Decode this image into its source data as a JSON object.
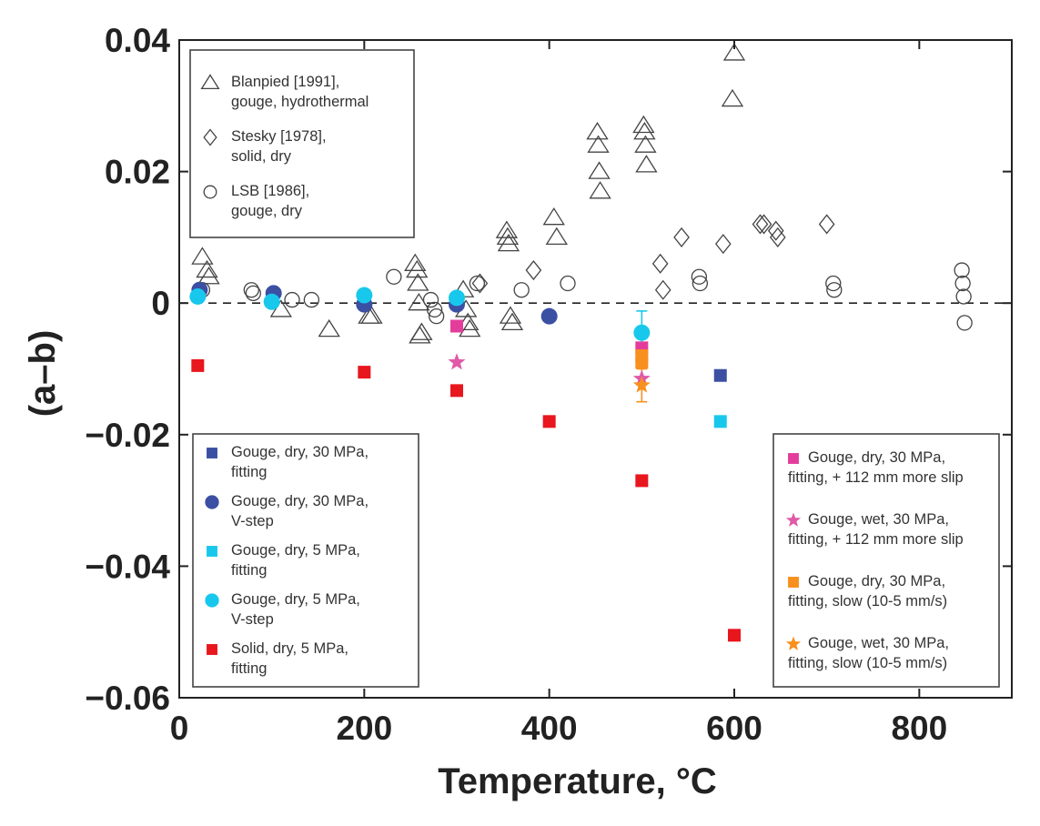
{
  "chart_data": {
    "type": "scatter",
    "title": "",
    "xlabel": "Temperature, °C",
    "ylabel": "(a–b)",
    "xlim": [
      0,
      900
    ],
    "ylim": [
      -0.06,
      0.04
    ],
    "xticks": [
      0,
      200,
      400,
      600,
      800
    ],
    "xtick_labels": [
      "0",
      "200",
      "400",
      "600",
      "800"
    ],
    "yticks": [
      -0.06,
      -0.04,
      -0.02,
      0,
      0.02,
      0.04
    ],
    "ytick_labels": [
      "−0.06",
      "−0.04",
      "−0.02",
      "0",
      "0.02",
      "0.04"
    ],
    "grid": false,
    "reference_line": {
      "y": 0,
      "style": "dashed"
    },
    "legends": [
      {
        "placement": "top-left",
        "entries": [
          {
            "series": 0,
            "lines": [
              "Blanpied [1991],",
              "gouge, hydrothermal"
            ]
          },
          {
            "series": 1,
            "lines": [
              "Stesky [1978],",
              "solid, dry"
            ]
          },
          {
            "series": 2,
            "lines": [
              "LSB [1986],",
              "gouge, dry"
            ]
          }
        ]
      },
      {
        "placement": "bottom-left",
        "entries": [
          {
            "series": 3,
            "lines": [
              "Gouge, dry, 30 MPa,",
              "fitting"
            ]
          },
          {
            "series": 4,
            "lines": [
              "Gouge, dry, 30 MPa,",
              "V-step"
            ]
          },
          {
            "series": 5,
            "lines": [
              "Gouge, dry, 5 MPa,",
              "fitting"
            ]
          },
          {
            "series": 6,
            "lines": [
              "Gouge, dry, 5 MPa,",
              "V-step"
            ]
          },
          {
            "series": 7,
            "lines": [
              "Solid, dry, 5 MPa,",
              "fitting"
            ]
          }
        ]
      },
      {
        "placement": "bottom-right",
        "entries": [
          {
            "series": 8,
            "lines": [
              "Gouge, dry, 30 MPa,",
              "fitting, + 112 mm more slip"
            ]
          },
          {
            "series": 9,
            "lines": [
              "Gouge, wet, 30 MPa,",
              "fitting, + 112 mm more slip"
            ]
          },
          {
            "series": 10,
            "lines": [
              "Gouge, dry, 30 MPa,",
              "fitting, slow (10-5 mm/s)"
            ]
          },
          {
            "series": 11,
            "lines": [
              "Gouge, wet, 30 MPa,",
              "fitting, slow (10-5 mm/s)"
            ]
          }
        ]
      }
    ],
    "series": [
      {
        "marker": "triangle",
        "color": "#444444",
        "fill": "none",
        "points": [
          [
            25,
            0.007
          ],
          [
            30,
            0.005
          ],
          [
            32,
            0.004
          ],
          [
            110,
            -0.001
          ],
          [
            162,
            -0.004
          ],
          [
            205,
            -0.002
          ],
          [
            208,
            -0.002
          ],
          [
            255,
            0.006
          ],
          [
            257,
            0.005
          ],
          [
            258,
            0.003
          ],
          [
            259,
            0.0
          ],
          [
            260,
            -0.005
          ],
          [
            262,
            -0.0045
          ],
          [
            307,
            0.002
          ],
          [
            310,
            -0.001
          ],
          [
            312,
            -0.003
          ],
          [
            314,
            -0.004
          ],
          [
            354,
            0.011
          ],
          [
            355,
            0.01
          ],
          [
            356,
            0.009
          ],
          [
            358,
            -0.002
          ],
          [
            360,
            -0.003
          ],
          [
            405,
            0.013
          ],
          [
            408,
            0.01
          ],
          [
            452,
            0.026
          ],
          [
            453,
            0.024
          ],
          [
            454,
            0.02
          ],
          [
            455,
            0.017
          ],
          [
            502,
            0.027
          ],
          [
            503,
            0.026
          ],
          [
            504,
            0.024
          ],
          [
            505,
            0.021
          ],
          [
            600,
            0.038
          ],
          [
            598,
            0.031
          ]
        ]
      },
      {
        "marker": "diamond",
        "color": "#444444",
        "fill": "none",
        "points": [
          [
            325,
            0.003
          ],
          [
            383,
            0.005
          ],
          [
            520,
            0.006
          ],
          [
            523,
            0.002
          ],
          [
            543,
            0.01
          ],
          [
            588,
            0.009
          ],
          [
            628,
            0.012
          ],
          [
            632,
            0.012
          ],
          [
            645,
            0.011
          ],
          [
            647,
            0.01
          ],
          [
            700,
            0.012
          ]
        ]
      },
      {
        "marker": "circle",
        "color": "#444444",
        "fill": "none",
        "points": [
          [
            25,
            0.002
          ],
          [
            78,
            0.002
          ],
          [
            80,
            0.0015
          ],
          [
            122,
            0.0005
          ],
          [
            143,
            0.0005
          ],
          [
            232,
            0.004
          ],
          [
            272,
            0.0005
          ],
          [
            276,
            -0.001
          ],
          [
            278,
            -0.002
          ],
          [
            322,
            0.003
          ],
          [
            370,
            0.002
          ],
          [
            420,
            0.003
          ],
          [
            562,
            0.004
          ],
          [
            563,
            0.003
          ],
          [
            707,
            0.003
          ],
          [
            708,
            0.002
          ],
          [
            846,
            0.005
          ],
          [
            847,
            0.003
          ],
          [
            848,
            0.001
          ],
          [
            849,
            -0.003
          ]
        ]
      },
      {
        "marker": "square",
        "color": "#3b4fa3",
        "fill": "#3b4fa3",
        "points": [
          [
            585,
            -0.011
          ]
        ]
      },
      {
        "marker": "circle",
        "color": "#3b4fa3",
        "fill": "#3b4fa3",
        "points": [
          [
            22,
            0.002
          ],
          [
            102,
            0.0015
          ],
          [
            200,
            -0.0002
          ],
          [
            300,
            -0.0002
          ],
          [
            400,
            -0.002
          ]
        ]
      },
      {
        "marker": "square",
        "color": "#18c8ec",
        "fill": "#18c8ec",
        "points": [
          [
            585,
            -0.018
          ]
        ]
      },
      {
        "marker": "circle",
        "color": "#18c8ec",
        "fill": "#18c8ec",
        "points": [
          [
            20,
            0.001
          ],
          [
            100,
            0.0002
          ],
          [
            200,
            0.0012
          ],
          [
            300,
            0.0008
          ],
          [
            500,
            -0.0045
          ]
        ],
        "error_bars": [
          {
            "x": 500,
            "low": -0.0078,
            "high": -0.0012
          }
        ]
      },
      {
        "marker": "square",
        "color": "#e8161d",
        "fill": "#e8161d",
        "points": [
          [
            20,
            -0.0095
          ],
          [
            200,
            -0.0105
          ],
          [
            300,
            -0.0133
          ],
          [
            400,
            -0.018
          ],
          [
            500,
            -0.027
          ],
          [
            600,
            -0.0505
          ]
        ]
      },
      {
        "marker": "square",
        "color": "#e43c9b",
        "fill": "#e43c9b",
        "points": [
          [
            300,
            -0.0035
          ],
          [
            500,
            -0.0068
          ]
        ]
      },
      {
        "marker": "star",
        "color": "#e05aa8",
        "fill": "#e05aa8",
        "points": [
          [
            300,
            -0.009
          ],
          [
            500,
            -0.0115
          ]
        ]
      },
      {
        "marker": "square",
        "color": "#f7901e",
        "fill": "#f7901e",
        "points": [
          [
            500,
            -0.008
          ],
          [
            500,
            -0.009
          ]
        ]
      },
      {
        "marker": "star",
        "color": "#f7901e",
        "fill": "#f7901e",
        "points": [
          [
            500,
            -0.0125
          ]
        ],
        "error_bars": [
          {
            "x": 500,
            "low": -0.015,
            "high": -0.01
          }
        ]
      }
    ]
  }
}
